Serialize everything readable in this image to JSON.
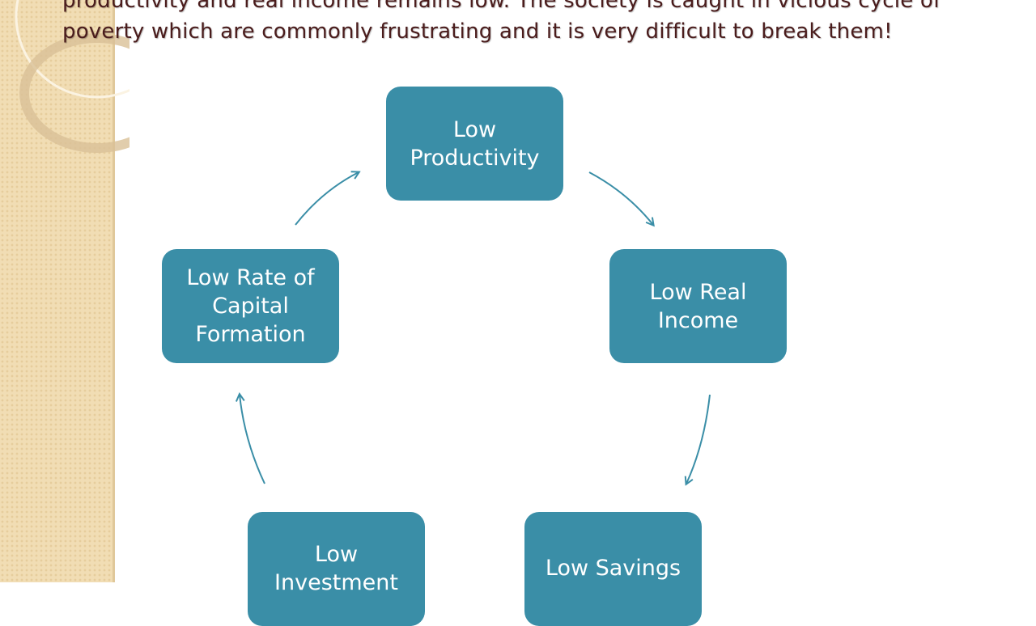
{
  "slide": {
    "text_lines": [
      "productivity and real income remains low. The society is caught in vicious cycle of",
      "poverty which are commonly frustrating and it is very difficult to break them!"
    ]
  },
  "diagram": {
    "type": "cycle",
    "nodes": [
      {
        "id": "productivity",
        "label": "Low\nProductivity"
      },
      {
        "id": "income",
        "label": "Low Real\nIncome"
      },
      {
        "id": "savings",
        "label": "Low Savings"
      },
      {
        "id": "investment",
        "label": "Low\nInvestment"
      },
      {
        "id": "capital",
        "label": "Low Rate of\nCapital\nFormation"
      }
    ],
    "edges": [
      {
        "from": "productivity",
        "to": "income"
      },
      {
        "from": "income",
        "to": "savings"
      },
      {
        "from": "savings",
        "to": "investment"
      },
      {
        "from": "investment",
        "to": "capital"
      },
      {
        "from": "capital",
        "to": "productivity"
      }
    ],
    "colors": {
      "node": "#3a8ea7",
      "arrow": "#3a8ea7",
      "text": "#4a1c1c"
    }
  }
}
